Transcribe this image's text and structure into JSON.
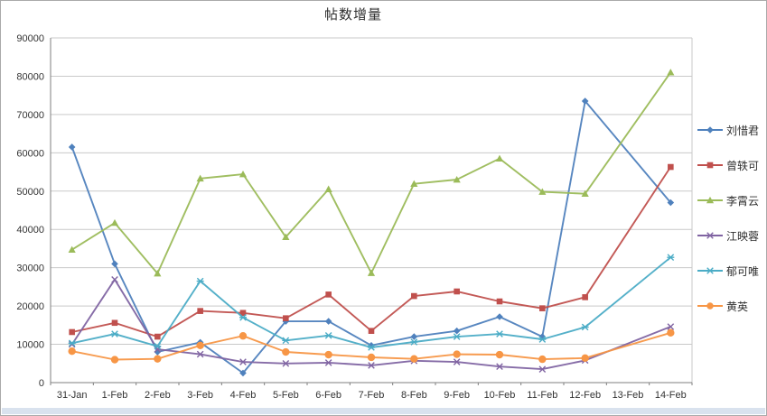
{
  "chart_data": {
    "type": "line",
    "title": "帖数增量",
    "categories": [
      "31-Jan",
      "1-Feb",
      "2-Feb",
      "3-Feb",
      "4-Feb",
      "5-Feb",
      "6-Feb",
      "7-Feb",
      "8-Feb",
      "9-Feb",
      "10-Feb",
      "11-Feb",
      "12-Feb",
      "13-Feb",
      "14-Feb"
    ],
    "series": [
      {
        "name": "刘惜君",
        "color": "#4F81BD",
        "marker": "diamond",
        "values": [
          61500,
          31000,
          8000,
          10500,
          2500,
          16000,
          16000,
          9700,
          12000,
          13500,
          17200,
          12000,
          73500,
          null,
          47000
        ]
      },
      {
        "name": "曾轶可",
        "color": "#C0504D",
        "marker": "square",
        "values": [
          13200,
          15600,
          12000,
          18700,
          18200,
          16800,
          23000,
          13500,
          22600,
          23800,
          21200,
          19400,
          22300,
          null,
          56300
        ]
      },
      {
        "name": "李霄云",
        "color": "#9BBB59",
        "marker": "triangle",
        "values": [
          34700,
          41700,
          28500,
          53300,
          54400,
          38000,
          50500,
          28600,
          51900,
          53000,
          58500,
          49800,
          49300,
          null,
          81000
        ]
      },
      {
        "name": "江映蓉",
        "color": "#8064A2",
        "marker": "x",
        "values": [
          10000,
          26900,
          8700,
          7400,
          5400,
          5000,
          5200,
          4500,
          5700,
          5400,
          4200,
          3500,
          5800,
          null,
          14600
        ]
      },
      {
        "name": "郁可唯",
        "color": "#4BACC6",
        "marker": "asterisk",
        "values": [
          10300,
          12700,
          9500,
          26500,
          17000,
          11000,
          12300,
          9200,
          10600,
          12000,
          12700,
          11300,
          14500,
          null,
          32700
        ]
      },
      {
        "name": "黄英",
        "color": "#F79646",
        "marker": "circle",
        "values": [
          8200,
          6000,
          6200,
          9700,
          12200,
          8000,
          7300,
          6600,
          6200,
          7400,
          7300,
          6100,
          6400,
          null,
          13000
        ]
      }
    ],
    "ylim": [
      0,
      90000
    ],
    "ytick_step": 10000,
    "y_tick_labels": [
      "0",
      "10000",
      "20000",
      "30000",
      "40000",
      "50000",
      "60000",
      "70000",
      "80000",
      "90000"
    ],
    "grid": true,
    "legend_position": "right",
    "missing_points_note": "13-Feb has no markers; lines connect 12-Feb to 14-Feb"
  },
  "style": {
    "gridline_color": "#c9c9c9",
    "axis_color": "#7f7f7f",
    "label_color": "#333333",
    "background": "#ffffff"
  }
}
